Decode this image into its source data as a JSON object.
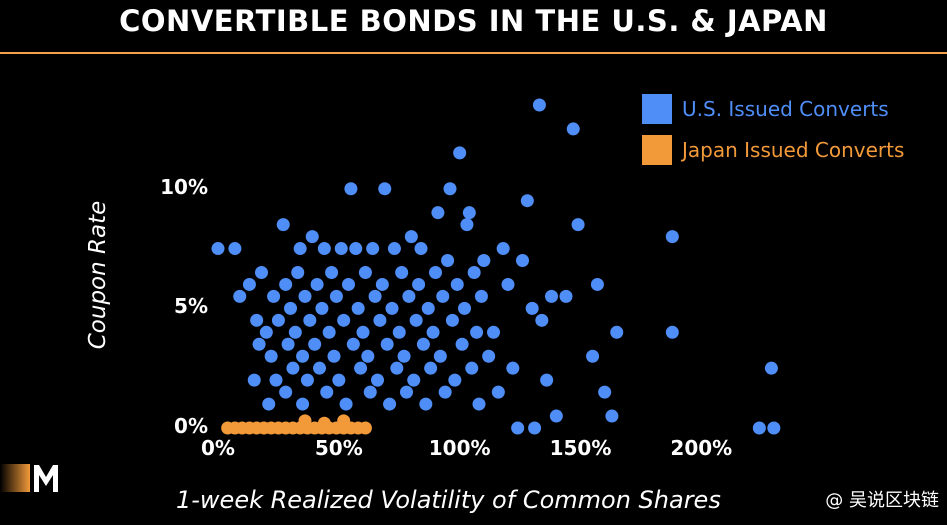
{
  "colors": {
    "background": "#000000",
    "us": "#4f8ef7",
    "japan": "#f29a3a",
    "accent_rule": "#f2a24a"
  },
  "watermark": "@ 吴说区块链",
  "chart_data": {
    "type": "scatter",
    "title": "CONVERTIBLE BONDS IN THE U.S. &  JAPAN",
    "xlabel": "1-week Realized Volatility of Common Shares",
    "ylabel": "Coupon Rate",
    "xlim": [
      0,
      240
    ],
    "ylim": [
      0,
      13.5
    ],
    "x_unit": "%",
    "y_unit": "%",
    "x_ticks": [
      0,
      50,
      100,
      150,
      200
    ],
    "y_ticks": [
      0,
      5,
      10
    ],
    "x_tick_labels": [
      "0%",
      "50%",
      "100%",
      "150%",
      "200%"
    ],
    "y_tick_labels": [
      "0%",
      "5%",
      "10%"
    ],
    "grid": false,
    "legend_position": "top-right",
    "series": [
      {
        "name": "U.S. Issued Converts",
        "color": "#4f8ef7",
        "points": [
          [
            0,
            7.5
          ],
          [
            7,
            7.5
          ],
          [
            9,
            5.5
          ],
          [
            13,
            6
          ],
          [
            16,
            4.5
          ],
          [
            17,
            3.5
          ],
          [
            18,
            6.5
          ],
          [
            15,
            2
          ],
          [
            20,
            4
          ],
          [
            21,
            1
          ],
          [
            22,
            3
          ],
          [
            23,
            5.5
          ],
          [
            24,
            2
          ],
          [
            25,
            4.5
          ],
          [
            27,
            8.5
          ],
          [
            28,
            1.5
          ],
          [
            28,
            6
          ],
          [
            29,
            3.5
          ],
          [
            30,
            5
          ],
          [
            31,
            2.5
          ],
          [
            32,
            4
          ],
          [
            33,
            6.5
          ],
          [
            34,
            7.5
          ],
          [
            35,
            3
          ],
          [
            35,
            1
          ],
          [
            36,
            5.5
          ],
          [
            37,
            2
          ],
          [
            38,
            4.5
          ],
          [
            39,
            8
          ],
          [
            40,
            3.5
          ],
          [
            41,
            6
          ],
          [
            42,
            2.5
          ],
          [
            43,
            5
          ],
          [
            44,
            7.5
          ],
          [
            45,
            1.5
          ],
          [
            46,
            4
          ],
          [
            47,
            6.5
          ],
          [
            48,
            3
          ],
          [
            49,
            5.5
          ],
          [
            50,
            2
          ],
          [
            51,
            7.5
          ],
          [
            52,
            4.5
          ],
          [
            53,
            1
          ],
          [
            54,
            6
          ],
          [
            55,
            10
          ],
          [
            56,
            3.5
          ],
          [
            57,
            7.5
          ],
          [
            58,
            5
          ],
          [
            59,
            2.5
          ],
          [
            60,
            4
          ],
          [
            61,
            6.5
          ],
          [
            62,
            3
          ],
          [
            63,
            1.5
          ],
          [
            64,
            7.5
          ],
          [
            65,
            5.5
          ],
          [
            66,
            2
          ],
          [
            67,
            4.5
          ],
          [
            68,
            6
          ],
          [
            69,
            10
          ],
          [
            70,
            3.5
          ],
          [
            71,
            1
          ],
          [
            72,
            5
          ],
          [
            73,
            7.5
          ],
          [
            74,
            2.5
          ],
          [
            75,
            4
          ],
          [
            76,
            6.5
          ],
          [
            77,
            3
          ],
          [
            78,
            1.5
          ],
          [
            79,
            5.5
          ],
          [
            80,
            8
          ],
          [
            81,
            2
          ],
          [
            82,
            4.5
          ],
          [
            83,
            6
          ],
          [
            84,
            7.5
          ],
          [
            85,
            3.5
          ],
          [
            86,
            1
          ],
          [
            87,
            5
          ],
          [
            88,
            2.5
          ],
          [
            89,
            4
          ],
          [
            90,
            6.5
          ],
          [
            91,
            9
          ],
          [
            92,
            3
          ],
          [
            93,
            5.5
          ],
          [
            94,
            1.5
          ],
          [
            95,
            7
          ],
          [
            96,
            10
          ],
          [
            97,
            4.5
          ],
          [
            98,
            2
          ],
          [
            99,
            6
          ],
          [
            100,
            11.5
          ],
          [
            101,
            3.5
          ],
          [
            102,
            5
          ],
          [
            103,
            8.5
          ],
          [
            104,
            9
          ],
          [
            105,
            2.5
          ],
          [
            106,
            6.5
          ],
          [
            107,
            4
          ],
          [
            108,
            1
          ],
          [
            109,
            5.5
          ],
          [
            110,
            7
          ],
          [
            112,
            3
          ],
          [
            114,
            4
          ],
          [
            116,
            1.5
          ],
          [
            118,
            7.5
          ],
          [
            120,
            6
          ],
          [
            122,
            2.5
          ],
          [
            124,
            0
          ],
          [
            126,
            7
          ],
          [
            128,
            9.5
          ],
          [
            130,
            5
          ],
          [
            131,
            0
          ],
          [
            133,
            13.5
          ],
          [
            134,
            4.5
          ],
          [
            136,
            2
          ],
          [
            138,
            5.5
          ],
          [
            140,
            0.5
          ],
          [
            144,
            5.5
          ],
          [
            147,
            12.5
          ],
          [
            149,
            8.5
          ],
          [
            155,
            3
          ],
          [
            157,
            6
          ],
          [
            160,
            1.5
          ],
          [
            163,
            0.5
          ],
          [
            165,
            4
          ],
          [
            188,
            8
          ],
          [
            188,
            4
          ],
          [
            224,
            0
          ],
          [
            229,
            2.5
          ],
          [
            230,
            0
          ]
        ]
      },
      {
        "name": "Japan Issued Converts",
        "color": "#f29a3a",
        "points": [
          [
            4,
            0
          ],
          [
            7,
            0
          ],
          [
            10,
            0
          ],
          [
            13,
            0
          ],
          [
            16,
            0
          ],
          [
            19,
            0
          ],
          [
            22,
            0
          ],
          [
            25,
            0
          ],
          [
            28,
            0
          ],
          [
            31,
            0
          ],
          [
            34,
            0
          ],
          [
            37,
            0
          ],
          [
            40,
            0
          ],
          [
            43,
            0
          ],
          [
            46,
            0
          ],
          [
            49,
            0
          ],
          [
            52,
            0
          ],
          [
            55,
            0
          ],
          [
            58,
            0
          ],
          [
            61,
            0
          ],
          [
            36,
            0.3
          ],
          [
            44,
            0.2
          ],
          [
            52,
            0.3
          ]
        ]
      }
    ]
  }
}
